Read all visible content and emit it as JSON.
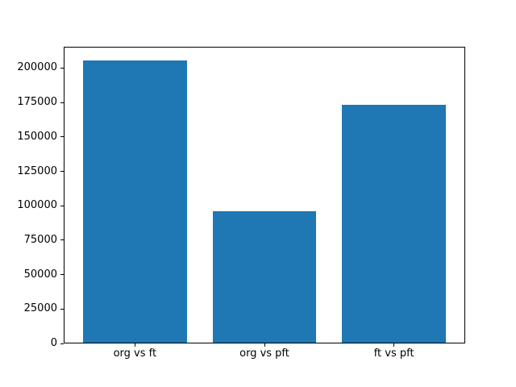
{
  "chart_data": {
    "type": "bar",
    "categories": [
      "org vs ft",
      "org vs pft",
      "ft vs pft"
    ],
    "values": [
      205000,
      95300,
      173000
    ],
    "yticks": [
      0,
      25000,
      50000,
      75000,
      100000,
      125000,
      150000,
      175000,
      200000
    ],
    "ytick_labels": [
      "0",
      "25000",
      "50000",
      "75000",
      "100000",
      "125000",
      "150000",
      "175000",
      "200000"
    ],
    "ylim": [
      0,
      215500
    ],
    "xlim": [
      -0.55,
      2.55
    ],
    "bar_width": 0.8,
    "bar_color": "#1f77b4",
    "spine_color": "#000000",
    "text_color": "#000000",
    "background_color": "#ffffff",
    "grid": false,
    "legend": null
  }
}
